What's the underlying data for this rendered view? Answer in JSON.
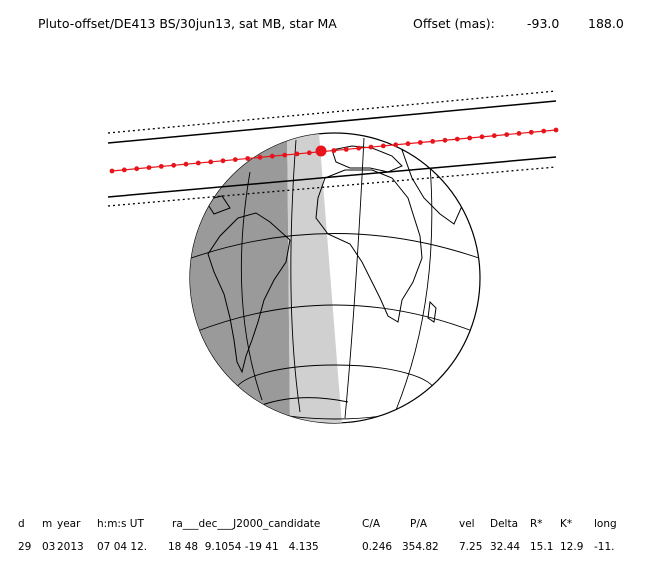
{
  "header": {
    "title": "Pluto-offset/DE413 BS/30jun13, sat MB, star MA",
    "offset_label": "Offset (mas):",
    "offset_ra": "-93.0",
    "offset_dec": "188.0"
  },
  "table": {
    "headers": [
      "d",
      "m",
      "year",
      "h:m:s UT",
      "ra___dec___J2000_candidate",
      "C/A",
      "P/A",
      "vel",
      "Delta",
      "R*",
      "K*",
      "long"
    ],
    "values": [
      "29",
      "03",
      "2013",
      "07 04 12.",
      "18 48  9.1054 -19 41   4.135",
      "0.246",
      "354.82",
      "7.25",
      "32.44",
      "15.1",
      "12.9",
      "-11."
    ]
  },
  "colors": {
    "track": "#e8141c",
    "night": "#9a9a9a",
    "twilight": "#d0d0d0",
    "line": "#000000"
  }
}
